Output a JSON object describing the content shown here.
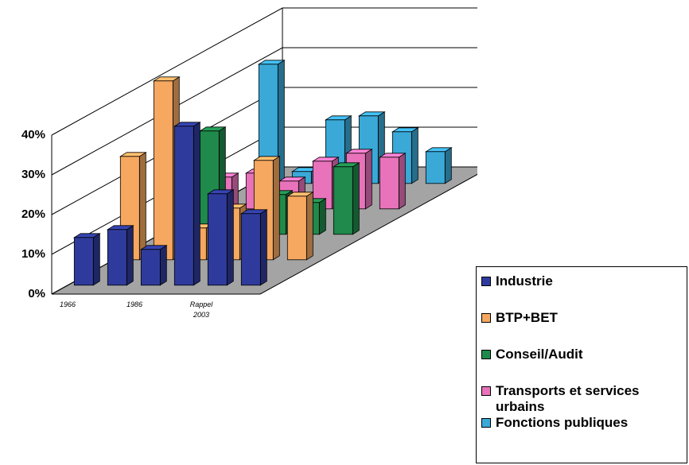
{
  "chart_data": {
    "type": "bar3d",
    "categories": [
      "1966",
      null,
      "1986",
      null,
      "Rappel 2003",
      null
    ],
    "series": [
      {
        "name": "Industrie",
        "color": "#2f3b9c",
        "values": [
          12,
          14,
          9,
          40,
          23,
          18
        ]
      },
      {
        "name": "BTP+BET",
        "color": "#f6a860",
        "values": [
          26,
          45,
          8,
          13,
          25,
          16
        ]
      },
      {
        "name": "Conseil/Audit",
        "color": "#1f8a4c",
        "values": [
          4,
          26,
          5,
          10,
          8,
          17
        ]
      },
      {
        "name": "Transports et services urbains",
        "color": "#e873bb",
        "values": [
          8,
          9,
          7,
          12,
          14,
          13
        ]
      },
      {
        "name": "Fonctions publiques",
        "color": "#3aa9d8",
        "values": [
          30,
          3,
          16,
          17,
          13,
          8
        ]
      }
    ],
    "ylim": [
      0,
      40
    ],
    "yticks": [
      {
        "value": 0,
        "label": "0%"
      },
      {
        "value": 10,
        "label": "10%"
      },
      {
        "value": 20,
        "label": "20%"
      },
      {
        "value": 30,
        "label": "30%"
      },
      {
        "value": 40,
        "label": "40%"
      }
    ],
    "grid": true
  }
}
